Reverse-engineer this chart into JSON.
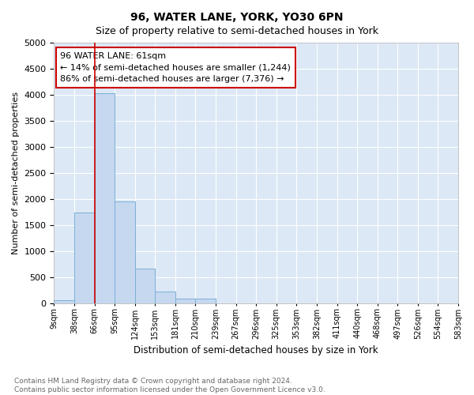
{
  "title": "96, WATER LANE, YORK, YO30 6PN",
  "subtitle": "Size of property relative to semi-detached houses in York",
  "xlabel": "Distribution of semi-detached houses by size in York",
  "ylabel": "Number of semi-detached properties",
  "bar_values": [
    60,
    1740,
    4030,
    1950,
    660,
    230,
    90,
    80,
    0,
    0,
    0,
    0,
    0,
    0,
    0,
    0,
    0,
    0,
    0,
    0
  ],
  "bin_labels": [
    "9sqm",
    "38sqm",
    "66sqm",
    "95sqm",
    "124sqm",
    "153sqm",
    "181sqm",
    "210sqm",
    "239sqm",
    "267sqm",
    "296sqm",
    "325sqm",
    "353sqm",
    "382sqm",
    "411sqm",
    "440sqm",
    "468sqm",
    "497sqm",
    "526sqm",
    "554sqm",
    "583sqm"
  ],
  "bar_color": "#c5d8f0",
  "bar_edge_color": "#7bafd4",
  "bg_color": "#dce8f5",
  "grid_color": "#ffffff",
  "vline_x": 2,
  "vline_color": "#cc0000",
  "annotation_text": "96 WATER LANE: 61sqm\n← 14% of semi-detached houses are smaller (1,244)\n86% of semi-detached houses are larger (7,376) →",
  "annotation_box_color": "#ffffff",
  "annotation_box_edge": "#cc0000",
  "ylim": [
    0,
    5000
  ],
  "yticks": [
    0,
    500,
    1000,
    1500,
    2000,
    2500,
    3000,
    3500,
    4000,
    4500,
    5000
  ],
  "footnote": "Contains HM Land Registry data © Crown copyright and database right 2024.\nContains public sector information licensed under the Open Government Licence v3.0.",
  "footnote_color": "#666666",
  "fig_bg": "#ffffff"
}
